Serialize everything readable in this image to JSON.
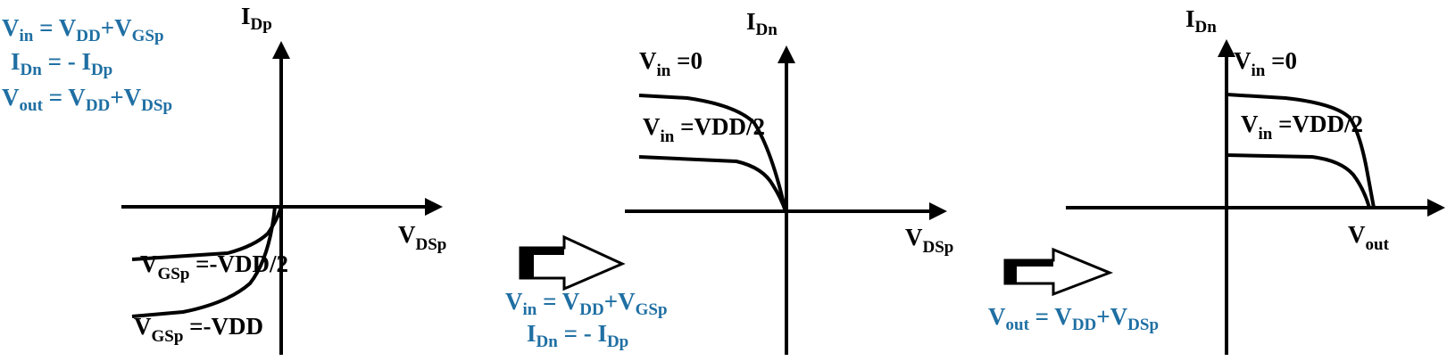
{
  "colors": {
    "equation": "#1f6fa3",
    "ink": "#000000"
  },
  "panel1": {
    "eq": {
      "vin": {
        "main": "V",
        "sub": "in",
        "mid": " = V",
        "sub2": "DD",
        "mid2": "+V",
        "sub3": "GSp"
      },
      "idn": {
        "main": "I",
        "sub": "Dn",
        "mid": " = - I",
        "sub2": "Dp"
      },
      "vout": {
        "main": "V",
        "sub": "out",
        "mid": " = V",
        "sub2": "DD",
        "mid2": "+V",
        "sub3": "DSp"
      }
    },
    "y_axis": {
      "main": "I",
      "sub": "Dp"
    },
    "x_axis": {
      "main": "V",
      "sub": "DSp"
    },
    "curve1": {
      "main": "V",
      "sub": "GSp",
      "rest": " =-VDD/2"
    },
    "curve2": {
      "main": "V",
      "sub": "GSp",
      "rest": " =-VDD"
    }
  },
  "transition1": {
    "vin": {
      "main": "V",
      "sub": "in",
      "mid": " = V",
      "sub2": "DD",
      "mid2": "+V",
      "sub3": "GSp"
    },
    "idn": {
      "main": "I",
      "sub": "Dn",
      "mid": " = - I",
      "sub2": "Dp"
    }
  },
  "panel2": {
    "y_axis": {
      "main": "I",
      "sub": "Dn"
    },
    "x_axis": {
      "main": "V",
      "sub": "DSp"
    },
    "curve1": {
      "main": "V",
      "sub": "in",
      "rest": " =0"
    },
    "curve2": {
      "main": "V",
      "sub": "in",
      "rest": " =VDD/2"
    }
  },
  "transition2": {
    "vout": {
      "main": "V",
      "sub": "out",
      "mid": " = V",
      "sub2": "DD",
      "mid2": "+V",
      "sub3": "DSp"
    }
  },
  "panel3": {
    "y_axis": {
      "main": "I",
      "sub": "Dn"
    },
    "x_axis": {
      "main": "V",
      "sub": "out"
    },
    "curve1": {
      "main": "V",
      "sub": "in",
      "rest": " =0"
    },
    "curve2": {
      "main": "V",
      "sub": "in",
      "rest": " =VDD/2"
    }
  }
}
